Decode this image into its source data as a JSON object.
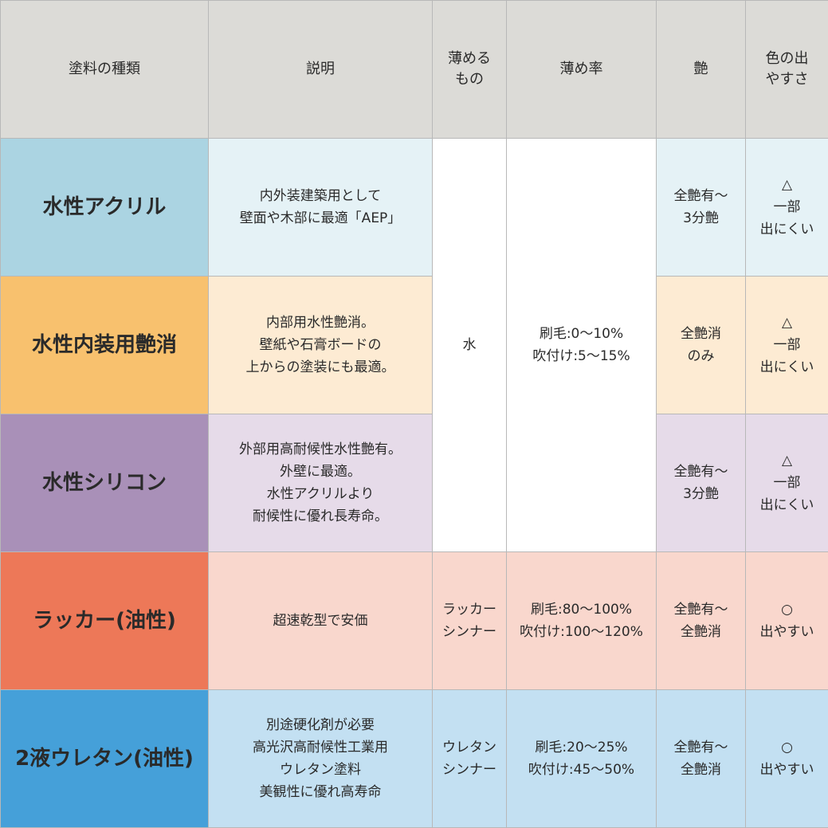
{
  "headers": [
    "塗料の種類",
    "説明",
    "薄める\nもの",
    "薄め率",
    "艶",
    "色の出\nやすさ"
  ],
  "colors": {
    "header": "#dcdbd7",
    "rows": [
      {
        "name": "#abd4e2",
        "cell": "#e5f2f6"
      },
      {
        "name": "#f8c16e",
        "cell": "#fdebd3"
      },
      {
        "name": "#a990b8",
        "cell": "#e6dbe9"
      },
      {
        "name": "#ed7858",
        "cell": "#f9d7cd"
      },
      {
        "name": "#45a0d9",
        "cell": "#c3e0f2"
      }
    ]
  },
  "shared_water": {
    "thinner": "水",
    "rate": "刷毛:0〜10%\n吹付け:5〜15%"
  },
  "rows": [
    {
      "name": "水性アクリル",
      "description": "内外装建築用として\n壁面や木部に最適「AEP」",
      "gloss": "全艶有〜\n3分艶",
      "color_ease": "△\n一部\n出にくい"
    },
    {
      "name": "水性内装用艶消",
      "description": "内部用水性艶消。\n壁紙や石膏ボードの\n上からの塗装にも最適。",
      "gloss": "全艶消\nのみ",
      "color_ease": "△\n一部\n出にくい"
    },
    {
      "name": "水性シリコン",
      "description": "外部用高耐候性水性艶有。\n外壁に最適。\n水性アクリルより\n耐候性に優れ長寿命。",
      "gloss": "全艶有〜\n3分艶",
      "color_ease": "△\n一部\n出にくい"
    },
    {
      "name": "ラッカー(油性)",
      "description": "超速乾型で安価",
      "thinner": "ラッカー\nシンナー",
      "rate": "刷毛:80〜100%\n吹付け:100〜120%",
      "gloss": "全艶有〜\n全艶消",
      "color_ease": "○\n出やすい"
    },
    {
      "name": "2液ウレタン(油性)",
      "description": "別途硬化剤が必要\n高光沢高耐候性工業用\nウレタン塗料\n美観性に優れ高寿命",
      "thinner": "ウレタン\nシンナー",
      "rate": "刷毛:20〜25%\n吹付け:45〜50%",
      "gloss": "全艶有〜\n全艶消",
      "color_ease": "○\n出やすい"
    }
  ]
}
